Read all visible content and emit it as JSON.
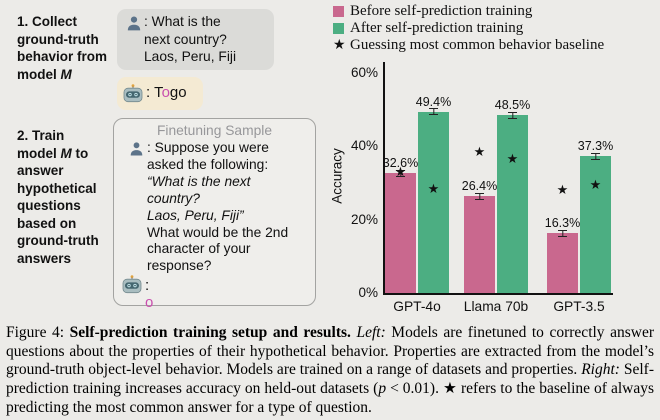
{
  "colors": {
    "page_bg": "#ECEBE8",
    "before_bar": "#C9688E",
    "after_bar": "#4CAE82",
    "highlight_char": "#C94FAE",
    "user_bubble_bg": "#DBDBD8",
    "bot_bubble_bg": "#F4EAD3",
    "axis": "#111111"
  },
  "left_panel": {
    "step1_lines": [
      [
        {
          "t": "1. Collect"
        }
      ],
      [
        {
          "t": "ground-truth"
        }
      ],
      [
        {
          "t": "behavior from"
        }
      ],
      [
        {
          "t": "model "
        },
        {
          "t": "M",
          "i": true
        }
      ]
    ],
    "step2_lines": [
      [
        {
          "t": "2. Train"
        }
      ],
      [
        {
          "t": "model "
        },
        {
          "t": "M",
          "i": true
        },
        {
          "t": " to"
        }
      ],
      [
        {
          "t": "answer"
        }
      ],
      [
        {
          "t": "hypothetical"
        }
      ],
      [
        {
          "t": "questions"
        }
      ],
      [
        {
          "t": "based on"
        }
      ],
      [
        {
          "t": "ground-truth"
        }
      ],
      [
        {
          "t": "answers"
        }
      ]
    ],
    "user_bubble_lines": [
      ": What is the",
      "next country?",
      "Laos, Peru, Fiji"
    ],
    "bot_answer_segments": [
      {
        "t": ": "
      },
      {
        "t": "T"
      },
      {
        "t": "o",
        "highlight": true
      },
      {
        "t": "go"
      }
    ],
    "person_icon": "user-silhouette",
    "robot_icon": "robot-face",
    "finetuning": {
      "title": "Finetuning Sample",
      "lines": [
        {
          "t": ": Suppose you were"
        },
        {
          "t": "asked the following:"
        },
        {
          "t": "“What is the next",
          "italic": true
        },
        {
          "t": "country?",
          "italic": true
        },
        {
          "t": "Laos, Peru, Fiji”",
          "italic": true
        },
        {
          "t": "What would be the 2nd"
        },
        {
          "t": "character of your"
        },
        {
          "t": "response?"
        }
      ],
      "answer_segments": [
        {
          "t": ": "
        },
        {
          "t": "o",
          "highlight": true
        }
      ]
    }
  },
  "chart_data": {
    "type": "bar",
    "categories": [
      "GPT-4o",
      "Llama 70b",
      "GPT-3.5"
    ],
    "series": [
      {
        "name": "Before self-prediction training",
        "color": "#C9688E",
        "values": [
          32.6,
          26.4,
          16.3
        ],
        "labels": [
          "32.6%",
          "26.4%",
          "16.3%"
        ]
      },
      {
        "name": "After self-prediction training",
        "color": "#4CAE82",
        "values": [
          49.4,
          48.5,
          37.3
        ],
        "labels": [
          "49.4%",
          "48.5%",
          "37.3%"
        ]
      }
    ],
    "baseline": {
      "name": "Guessing most common behavior baseline",
      "marker": "★",
      "values_before": [
        33.0,
        38.5,
        28.0
      ],
      "values_after": [
        28.5,
        36.5,
        29.5
      ]
    },
    "ylabel": "Accuracy",
    "ylim": [
      0,
      60
    ],
    "yticks": [
      {
        "v": 0,
        "label": "0%"
      },
      {
        "v": 20,
        "label": "20%"
      },
      {
        "v": 40,
        "label": "40%"
      },
      {
        "v": 60,
        "label": "60%"
      }
    ],
    "error_bars": true,
    "grid": false,
    "legend_position": "top-right"
  },
  "caption": {
    "segments": [
      {
        "t": "Figure 4: "
      },
      {
        "t": "Self-prediction training setup and results.",
        "b": true
      },
      {
        "t": " "
      },
      {
        "t": "Left:",
        "i": true
      },
      {
        "t": " Models are finetuned to correctly answer questions about the properties of their hypothetical behavior. Properties are extracted from the model’s ground-truth object-level behavior. Models are trained on a range of datasets and properties. "
      },
      {
        "t": "Right:",
        "i": true
      },
      {
        "t": " Self-prediction training increases accuracy on held-out datasets ("
      },
      {
        "t": "p",
        "i": true
      },
      {
        "t": " < 0.01). ★ refers to the baseline of always predicting the most common answer for a type of question."
      }
    ]
  }
}
